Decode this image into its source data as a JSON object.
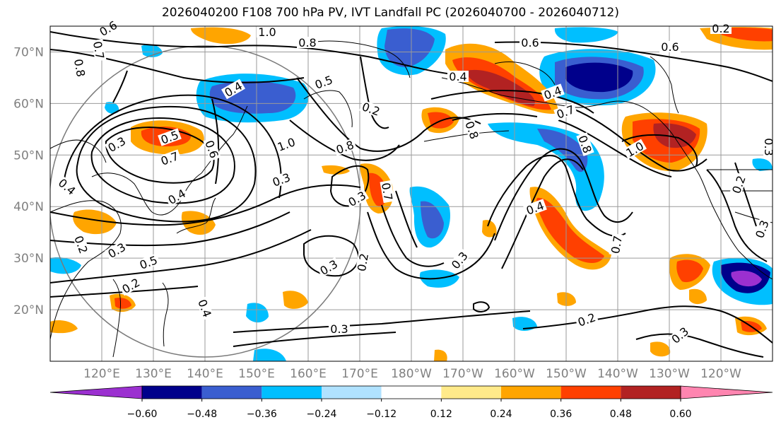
{
  "title": "2026040200 F108 700 hPa PV, IVT Landfall PC (2026040700 - 2026040712)",
  "map": {
    "lat_labels": [
      "70°N",
      "60°N",
      "50°N",
      "40°N",
      "30°N",
      "20°N"
    ],
    "lon_labels": [
      "120°E",
      "130°E",
      "140°E",
      "150°E",
      "160°E",
      "170°E",
      "180°W",
      "170°W",
      "160°W",
      "150°W",
      "140°W",
      "130°W",
      "120°W"
    ],
    "lat_range": [
      10,
      75
    ],
    "lon_range_east": [
      110,
      250
    ]
  },
  "colorbar": {
    "ticks": [
      "−0.60",
      "−0.48",
      "−0.36",
      "−0.24",
      "−0.12",
      "0.12",
      "0.24",
      "0.36",
      "0.48",
      "0.60"
    ],
    "colors": [
      "#9b30d0",
      "#00008b",
      "#3a5ed0",
      "#00bfff",
      "#b0e2ff",
      "#ffffff",
      "#ffea8a",
      "#ffa500",
      "#ff4000",
      "#b22222",
      "#ff85b0"
    ]
  },
  "contour_labels": [
    "0.6",
    "1.0",
    "0.8",
    "0.7",
    "0.8",
    "0.4",
    "0.5",
    "0.3",
    "0.7",
    "0.6",
    "0.4",
    "0.4",
    "0.3",
    "0.2",
    "0.3",
    "0.5",
    "0.2",
    "0.4",
    "0.2",
    "0.8",
    "1.0",
    "0.3",
    "0.7",
    "0.3",
    "0.2",
    "0.3",
    "0.6",
    "0.5",
    "0.4",
    "0.6",
    "0.4",
    "0.7",
    "0.8",
    "1.0",
    "0.4",
    "0.8",
    "0.7",
    "0.3",
    "0.2",
    "0.3",
    "0.2",
    "0.3",
    "0.2",
    "0.3"
  ]
}
